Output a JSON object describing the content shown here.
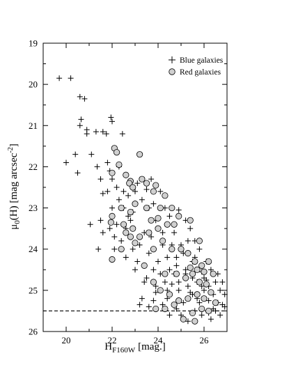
{
  "chart_data": {
    "type": "scatter",
    "xlabel_main": "H",
    "xlabel_sub": "F160W",
    "xlabel_units": "[mag.]",
    "ylabel_mu": "μ",
    "ylabel_sub": "0",
    "ylabel_band": "(H) [mag arcsec",
    "ylabel_exp": "-2",
    "ylabel_close": "]",
    "xlim": [
      19,
      27
    ],
    "ylim": [
      26,
      19
    ],
    "y_inverted": true,
    "x_ticks": [
      20,
      22,
      24,
      26
    ],
    "y_ticks": [
      19,
      20,
      21,
      22,
      23,
      24,
      25,
      26
    ],
    "grid": false,
    "legend_position": "top-right",
    "reference_line": {
      "y": 25.5,
      "style": "dashed"
    },
    "series": [
      {
        "name": "Blue galaxies",
        "marker": "plus",
        "points": [
          [
            19.7,
            19.85
          ],
          [
            20.2,
            19.85
          ],
          [
            20.6,
            20.3
          ],
          [
            20.8,
            20.35
          ],
          [
            20.6,
            21.0
          ],
          [
            20.65,
            20.85
          ],
          [
            20.9,
            21.1
          ],
          [
            20.9,
            21.2
          ],
          [
            21.3,
            21.15
          ],
          [
            21.6,
            21.15
          ],
          [
            21.75,
            21.2
          ],
          [
            21.95,
            20.8
          ],
          [
            22.0,
            20.9
          ],
          [
            22.45,
            21.2
          ],
          [
            21.1,
            21.7
          ],
          [
            20.0,
            21.9
          ],
          [
            20.4,
            21.7
          ],
          [
            20.5,
            22.15
          ],
          [
            21.35,
            22.0
          ],
          [
            21.8,
            21.9
          ],
          [
            21.5,
            22.3
          ],
          [
            21.9,
            22.1
          ],
          [
            22.3,
            22.0
          ],
          [
            21.6,
            22.65
          ],
          [
            21.05,
            23.4
          ],
          [
            21.5,
            23.3
          ],
          [
            21.4,
            24.0
          ],
          [
            21.9,
            23.5
          ],
          [
            21.6,
            23.6
          ],
          [
            22.0,
            23.0
          ],
          [
            22.1,
            23.7
          ],
          [
            22.2,
            23.4
          ],
          [
            22.4,
            23.8
          ],
          [
            22.2,
            22.5
          ],
          [
            22.0,
            22.3
          ],
          [
            22.5,
            22.6
          ],
          [
            22.7,
            22.7
          ],
          [
            22.9,
            23.1
          ],
          [
            22.7,
            23.2
          ],
          [
            22.6,
            23.5
          ],
          [
            22.9,
            24.0
          ],
          [
            23.1,
            24.3
          ],
          [
            23.3,
            22.8
          ],
          [
            23.1,
            22.4
          ],
          [
            23.5,
            22.55
          ],
          [
            23.6,
            23.0
          ],
          [
            23.4,
            23.6
          ],
          [
            23.2,
            23.9
          ],
          [
            23.6,
            24.1
          ],
          [
            23.8,
            24.5
          ],
          [
            23.9,
            23.3
          ],
          [
            24.1,
            22.6
          ],
          [
            24.3,
            23.0
          ],
          [
            23.8,
            22.9
          ],
          [
            24.5,
            23.2
          ],
          [
            24.7,
            23.6
          ],
          [
            24.2,
            23.9
          ],
          [
            24.4,
            24.2
          ],
          [
            24.1,
            24.6
          ],
          [
            23.9,
            24.9
          ],
          [
            23.5,
            24.7
          ],
          [
            23.3,
            25.2
          ],
          [
            23.2,
            25.35
          ],
          [
            23.6,
            25.4
          ],
          [
            23.9,
            25.05
          ],
          [
            24.4,
            25.2
          ],
          [
            24.6,
            24.85
          ],
          [
            24.8,
            24.4
          ],
          [
            25.0,
            23.9
          ],
          [
            25.2,
            23.3
          ],
          [
            24.9,
            23.05
          ],
          [
            25.4,
            23.5
          ],
          [
            25.6,
            23.8
          ],
          [
            25.8,
            24.0
          ],
          [
            25.5,
            24.3
          ],
          [
            25.2,
            24.6
          ],
          [
            24.9,
            25.0
          ],
          [
            25.1,
            25.3
          ],
          [
            25.4,
            25.05
          ],
          [
            25.7,
            24.8
          ],
          [
            25.9,
            24.55
          ],
          [
            26.1,
            24.3
          ],
          [
            26.3,
            24.5
          ],
          [
            26.5,
            24.8
          ],
          [
            26.7,
            25.0
          ],
          [
            26.9,
            25.1
          ],
          [
            26.6,
            25.3
          ],
          [
            26.4,
            25.1
          ],
          [
            26.2,
            25.25
          ],
          [
            26.0,
            25.0
          ],
          [
            25.8,
            25.3
          ],
          [
            25.6,
            25.5
          ],
          [
            25.9,
            25.6
          ],
          [
            26.2,
            25.55
          ],
          [
            26.5,
            25.5
          ],
          [
            26.8,
            25.35
          ],
          [
            26.3,
            25.7
          ],
          [
            25.3,
            25.75
          ],
          [
            24.8,
            25.45
          ],
          [
            24.5,
            25.6
          ],
          [
            26.0,
            24.7
          ],
          [
            26.2,
            24.9
          ],
          [
            25.5,
            24.7
          ],
          [
            25.3,
            24.9
          ],
          [
            24.7,
            24.6
          ],
          [
            24.3,
            24.8
          ],
          [
            24.0,
            24.3
          ],
          [
            24.5,
            24.5
          ],
          [
            24.8,
            24.2
          ],
          [
            25.1,
            24.1
          ],
          [
            25.3,
            23.8
          ],
          [
            25.6,
            24.2
          ],
          [
            24.6,
            23.9
          ],
          [
            24.2,
            23.6
          ],
          [
            23.7,
            23.7
          ],
          [
            22.8,
            23.3
          ],
          [
            22.5,
            23.0
          ],
          [
            22.3,
            22.8
          ],
          [
            23.0,
            22.6
          ],
          [
            23.7,
            22.3
          ],
          [
            22.1,
            24.0
          ],
          [
            21.8,
            22.6
          ],
          [
            22.6,
            24.2
          ],
          [
            23.0,
            24.5
          ],
          [
            23.4,
            24.8
          ],
          [
            26.6,
            24.6
          ],
          [
            26.8,
            24.8
          ],
          [
            26.9,
            25.4
          ],
          [
            26.4,
            25.45
          ],
          [
            25.7,
            25.2
          ],
          [
            25.9,
            24.9
          ],
          [
            26.1,
            24.75
          ],
          [
            24.9,
            24.8
          ],
          [
            25.2,
            24.5
          ],
          [
            25.5,
            25.1
          ],
          [
            24.4,
            25.0
          ],
          [
            24.2,
            25.35
          ],
          [
            23.8,
            25.25
          ],
          [
            25.0,
            25.6
          ],
          [
            26.7,
            25.6
          ]
        ]
      },
      {
        "name": "Red galaxies",
        "marker": "circle",
        "points": [
          [
            22.1,
            21.55
          ],
          [
            22.2,
            21.65
          ],
          [
            23.2,
            21.7
          ],
          [
            22.3,
            21.95
          ],
          [
            22.0,
            22.15
          ],
          [
            22.6,
            22.2
          ],
          [
            22.8,
            22.35
          ],
          [
            22.75,
            22.4
          ],
          [
            22.9,
            22.5
          ],
          [
            23.3,
            22.3
          ],
          [
            23.5,
            22.4
          ],
          [
            23.9,
            22.45
          ],
          [
            23.8,
            22.6
          ],
          [
            24.3,
            22.7
          ],
          [
            23.0,
            22.9
          ],
          [
            22.4,
            23.0
          ],
          [
            22.8,
            23.1
          ],
          [
            23.5,
            23.0
          ],
          [
            24.1,
            23.0
          ],
          [
            24.6,
            23.0
          ],
          [
            24.0,
            23.25
          ],
          [
            23.7,
            23.3
          ],
          [
            22.5,
            23.4
          ],
          [
            22.0,
            23.2
          ],
          [
            21.95,
            23.35
          ],
          [
            22.6,
            23.6
          ],
          [
            22.9,
            23.5
          ],
          [
            23.2,
            23.7
          ],
          [
            22.8,
            23.7
          ],
          [
            23.0,
            23.85
          ],
          [
            23.6,
            23.6
          ],
          [
            24.0,
            23.5
          ],
          [
            24.4,
            23.4
          ],
          [
            24.7,
            23.4
          ],
          [
            24.9,
            23.2
          ],
          [
            25.4,
            23.3
          ],
          [
            25.8,
            23.8
          ],
          [
            24.2,
            23.8
          ],
          [
            23.8,
            24.0
          ],
          [
            22.4,
            24.0
          ],
          [
            22.0,
            24.25
          ],
          [
            23.4,
            24.4
          ],
          [
            24.6,
            24.0
          ],
          [
            25.0,
            24.0
          ],
          [
            25.3,
            24.1
          ],
          [
            25.6,
            24.3
          ],
          [
            25.9,
            24.4
          ],
          [
            26.2,
            24.3
          ],
          [
            24.3,
            24.6
          ],
          [
            24.8,
            24.6
          ],
          [
            25.2,
            24.7
          ],
          [
            25.5,
            24.6
          ],
          [
            25.8,
            24.8
          ],
          [
            26.1,
            24.85
          ],
          [
            26.4,
            24.6
          ],
          [
            23.8,
            24.8
          ],
          [
            24.1,
            25.0
          ],
          [
            24.5,
            25.1
          ],
          [
            24.9,
            25.25
          ],
          [
            25.3,
            25.2
          ],
          [
            25.7,
            25.1
          ],
          [
            26.0,
            25.2
          ],
          [
            26.3,
            25.05
          ],
          [
            26.5,
            25.3
          ],
          [
            26.2,
            25.5
          ],
          [
            25.9,
            25.45
          ],
          [
            25.5,
            25.55
          ],
          [
            24.7,
            25.35
          ],
          [
            24.3,
            25.45
          ],
          [
            23.9,
            25.45
          ],
          [
            25.1,
            25.7
          ],
          [
            25.6,
            25.75
          ],
          [
            25.7,
            24.5
          ],
          [
            25.4,
            24.45
          ],
          [
            26.0,
            24.55
          ]
        ]
      }
    ]
  }
}
